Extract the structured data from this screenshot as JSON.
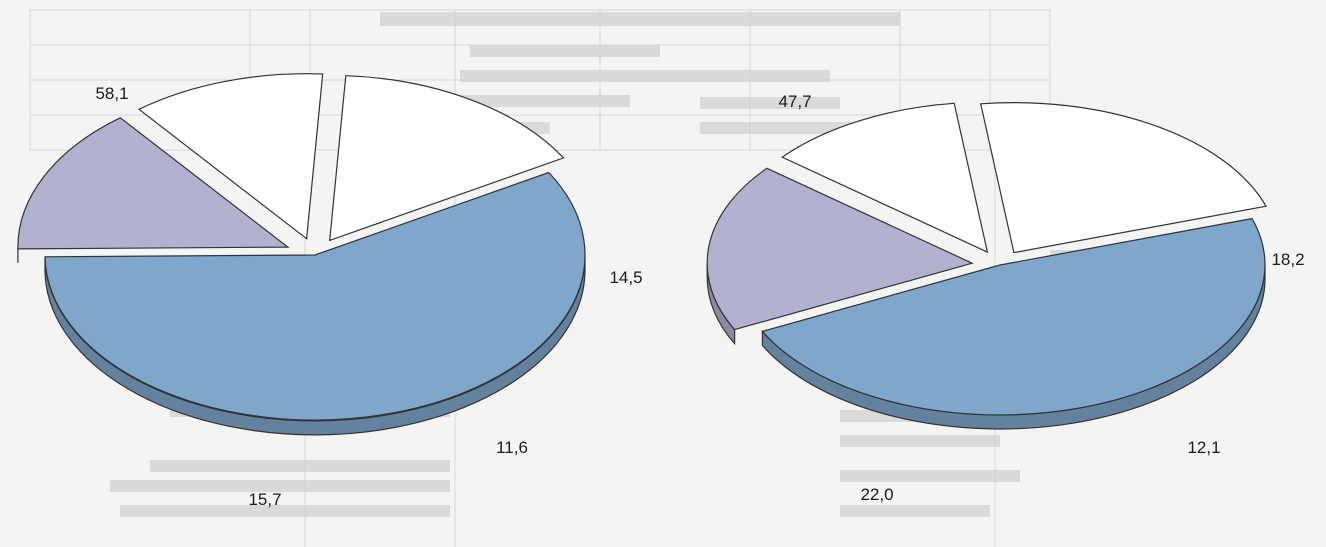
{
  "chart_data": [
    {
      "type": "pie",
      "style": "3d-exploded",
      "values": [
        58.1,
        14.5,
        11.6,
        15.7
      ],
      "labels": [
        "58,1",
        "14,5",
        "11,6",
        "15,7"
      ],
      "colors": [
        "#7fa7cc",
        "#b1b2cf",
        "#ffffff",
        "#ffffff"
      ]
    },
    {
      "type": "pie",
      "style": "3d-exploded",
      "values": [
        47.7,
        18.2,
        12.1,
        22.0
      ],
      "labels": [
        "47,7",
        "18,2",
        "12,1",
        "22,0"
      ],
      "colors": [
        "#7fa7cc",
        "#b1b2cf",
        "#ffffff",
        "#ffffff"
      ]
    }
  ]
}
